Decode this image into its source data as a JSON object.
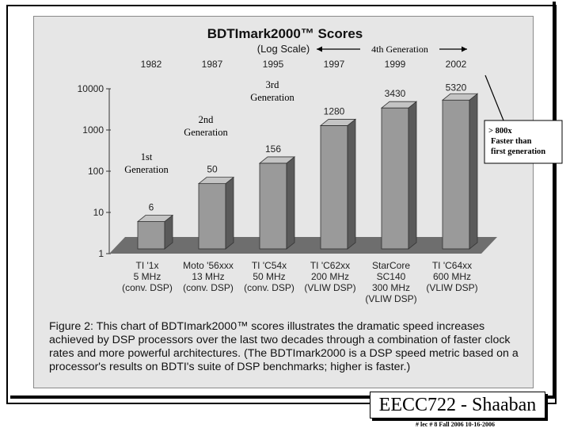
{
  "chart_data": {
    "type": "bar",
    "title": "BDTImark2000™ Scores",
    "scale_note": "(Log Scale)",
    "y_scale": "log",
    "ylim": [
      1,
      10000
    ],
    "y_ticks": [
      "1",
      "10",
      "100",
      "1000",
      "10000"
    ],
    "categories": [
      {
        "year": "1982",
        "lines": [
          "TI '1x",
          "5 MHz",
          "(conv. DSP)"
        ]
      },
      {
        "year": "1987",
        "lines": [
          "Moto '56xxx",
          "13 MHz",
          "(conv. DSP)"
        ]
      },
      {
        "year": "1995",
        "lines": [
          "TI 'C54x",
          "50 MHz",
          "(conv. DSP)"
        ]
      },
      {
        "year": "1997",
        "lines": [
          "TI 'C62xx",
          "200 MHz",
          "(VLIW DSP)"
        ]
      },
      {
        "year": "1999",
        "lines": [
          "StarCore",
          "SC140",
          "300 MHz",
          "(VLIW DSP)"
        ]
      },
      {
        "year": "2002",
        "lines": [
          "TI 'C64xx",
          "600 MHz",
          "(VLIW DSP)"
        ]
      }
    ],
    "values": [
      6,
      50,
      156,
      1280,
      3430,
      5320
    ],
    "value_labels": [
      "6",
      "50",
      "156",
      "1280",
      "3430",
      "5320"
    ],
    "annotations": {
      "gen1": [
        "1st",
        "Generation"
      ],
      "gen2": [
        "2nd",
        "Generation"
      ],
      "gen3": [
        "3rd",
        "Generation"
      ],
      "gen4": "4th  Generation",
      "speedup": [
        "> 800x",
        "Faster than",
        "first generation"
      ]
    },
    "colors": {
      "bar_front": "#9a9a9a",
      "bar_side": "#5a5a5a",
      "bar_top": "#c4c4c4",
      "floor": "#6e6e6e",
      "panel": "#e6e6e6"
    }
  },
  "caption": "Figure 2: This chart of BDTImark2000™ scores illustrates the dramatic speed increases achieved by DSP processors over the last two decades through a combination of faster clock rates and more powerful architectures. (The BDTImark2000 is a DSP speed metric based on a processor's results on BDTI's suite of DSP benchmarks; higher is faster.)",
  "footer": {
    "course": "EECC722 - Shaaban",
    "meta": "#  lec # 8    Fall 2006   10-16-2006"
  }
}
